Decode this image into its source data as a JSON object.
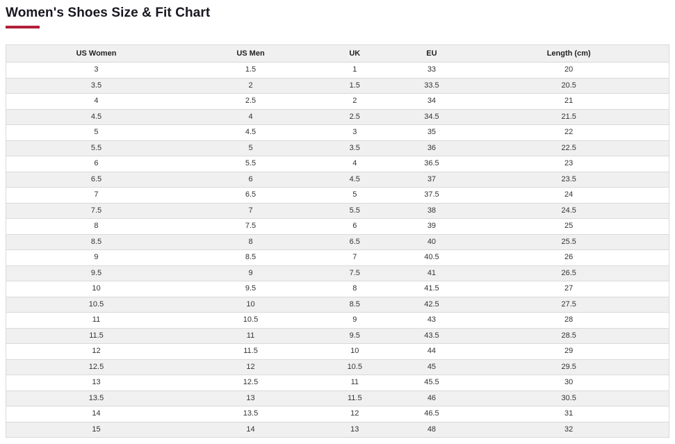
{
  "page": {
    "title": "Women's Shoes Size & Fit Chart",
    "accent_color": "#b11f38"
  },
  "chart_data": {
    "type": "table",
    "title": "Women's Shoes Size & Fit Chart",
    "columns": [
      "US Women",
      "US Men",
      "UK",
      "EU",
      "Length (cm)"
    ],
    "rows": [
      [
        "3",
        "1.5",
        "1",
        "33",
        "20"
      ],
      [
        "3.5",
        "2",
        "1.5",
        "33.5",
        "20.5"
      ],
      [
        "4",
        "2.5",
        "2",
        "34",
        "21"
      ],
      [
        "4.5",
        "4",
        "2.5",
        "34.5",
        "21.5"
      ],
      [
        "5",
        "4.5",
        "3",
        "35",
        "22"
      ],
      [
        "5.5",
        "5",
        "3.5",
        "36",
        "22.5"
      ],
      [
        "6",
        "5.5",
        "4",
        "36.5",
        "23"
      ],
      [
        "6.5",
        "6",
        "4.5",
        "37",
        "23.5"
      ],
      [
        "7",
        "6.5",
        "5",
        "37.5",
        "24"
      ],
      [
        "7.5",
        "7",
        "5.5",
        "38",
        "24.5"
      ],
      [
        "8",
        "7.5",
        "6",
        "39",
        "25"
      ],
      [
        "8.5",
        "8",
        "6.5",
        "40",
        "25.5"
      ],
      [
        "9",
        "8.5",
        "7",
        "40.5",
        "26"
      ],
      [
        "9.5",
        "9",
        "7.5",
        "41",
        "26.5"
      ],
      [
        "10",
        "9.5",
        "8",
        "41.5",
        "27"
      ],
      [
        "10.5",
        "10",
        "8.5",
        "42.5",
        "27.5"
      ],
      [
        "11",
        "10.5",
        "9",
        "43",
        "28"
      ],
      [
        "11.5",
        "11",
        "9.5",
        "43.5",
        "28.5"
      ],
      [
        "12",
        "11.5",
        "10",
        "44",
        "29"
      ],
      [
        "12.5",
        "12",
        "10.5",
        "45",
        "29.5"
      ],
      [
        "13",
        "12.5",
        "11",
        "45.5",
        "30"
      ],
      [
        "13.5",
        "13",
        "11.5",
        "46",
        "30.5"
      ],
      [
        "14",
        "13.5",
        "12",
        "46.5",
        "31"
      ],
      [
        "15",
        "14",
        "13",
        "48",
        "32"
      ]
    ]
  }
}
